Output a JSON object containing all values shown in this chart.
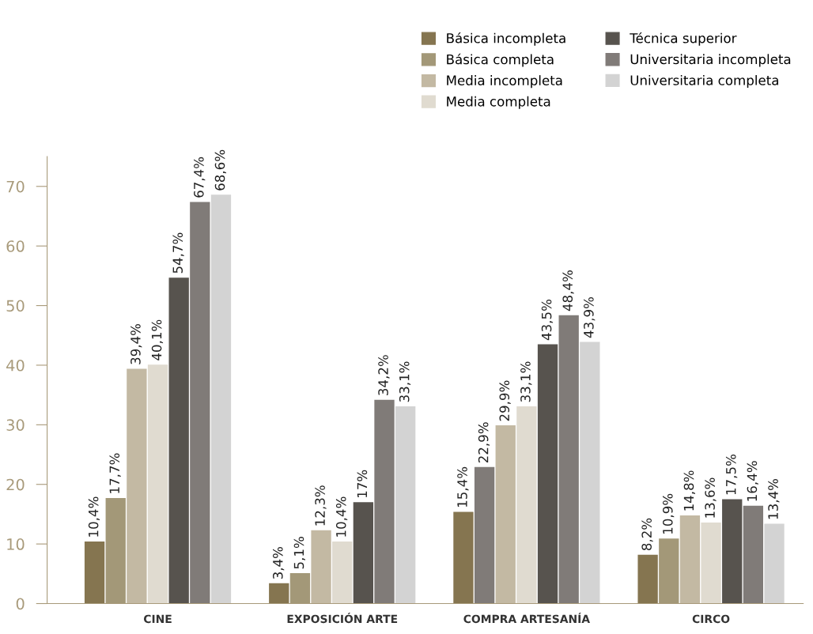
{
  "chart_data": {
    "type": "bar",
    "categories": [
      "CINE",
      "EXPOSICIÓN ARTE",
      "COMPRA ARTESANÍA",
      "CIRCO"
    ],
    "series": [
      {
        "name": "Básica incompleta",
        "color": "#857550",
        "values": [
          10.4,
          3.4,
          15.4,
          8.2
        ],
        "value_labels": [
          "10,4%",
          "3,4%",
          "15,4%",
          "8,2%"
        ]
      },
      {
        "name": "Básica completa",
        "color": "#a39878",
        "colors": [
          "#a39878",
          "#a39878",
          "#807b78",
          "#a39878"
        ],
        "values": [
          17.7,
          5.1,
          22.9,
          10.9
        ],
        "value_labels": [
          "17,7%",
          "5,1%",
          "22,9%",
          "10,9%"
        ]
      },
      {
        "name": "Media incompleta",
        "color": "#c3b9a3",
        "values": [
          39.4,
          12.3,
          29.9,
          14.8
        ],
        "value_labels": [
          "39,4%",
          "12,3%",
          "29,9%",
          "14,8%"
        ]
      },
      {
        "name": "Media completa",
        "color": "#e0dbd0",
        "values": [
          40.1,
          10.4,
          33.1,
          13.6
        ],
        "value_labels": [
          "40,1%",
          "10,4%",
          "33,1%",
          "13,6%"
        ]
      },
      {
        "name": "Técnica superior",
        "color": "#57534e",
        "values": [
          54.7,
          17,
          43.5,
          17.5
        ],
        "value_labels": [
          "54,7%",
          "17%",
          "43,5%",
          "17,5%"
        ]
      },
      {
        "name": "Universitaria incompleta",
        "color": "#807b78",
        "values": [
          67.4,
          34.2,
          48.4,
          16.4
        ],
        "value_labels": [
          "67,4%",
          "34,2%",
          "48,4%",
          "16,4%"
        ]
      },
      {
        "name": "Universitaria completa",
        "color": "#d3d3d3",
        "values": [
          68.6,
          33.1,
          43.9,
          13.4
        ],
        "value_labels": [
          "68,6%",
          "33,1%",
          "43,9%",
          "13,4%"
        ]
      }
    ],
    "ylim": [
      0,
      75
    ],
    "yticks": [
      0,
      10,
      20,
      30,
      40,
      50,
      60,
      70
    ],
    "grid": false,
    "legend": "top right"
  }
}
